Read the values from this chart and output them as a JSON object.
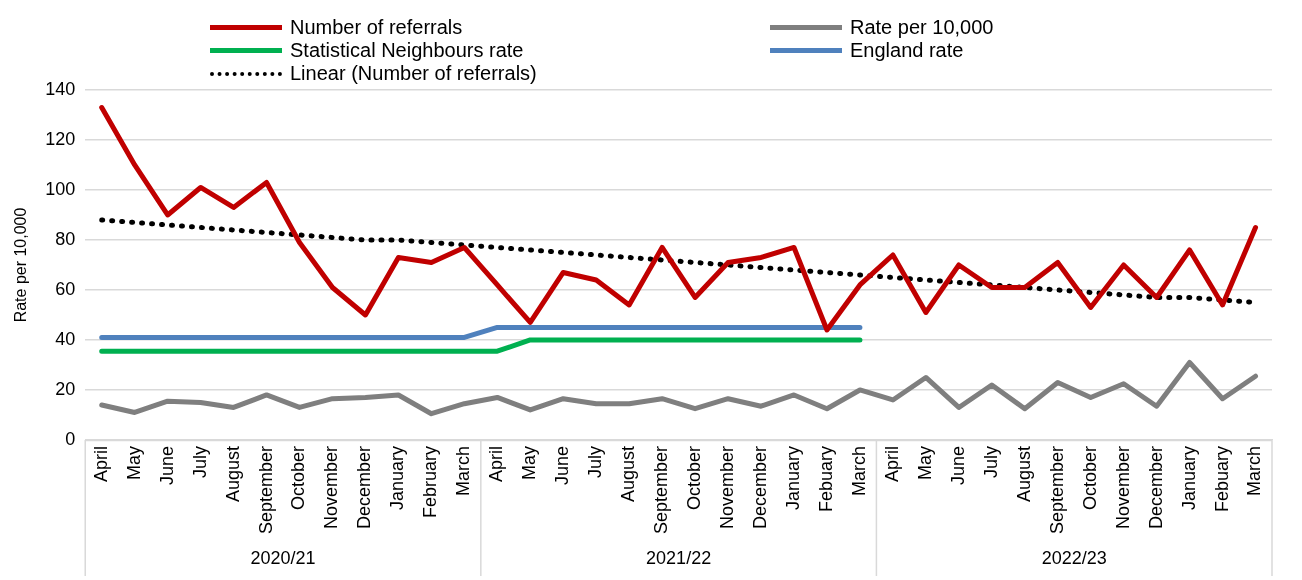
{
  "chart_data": {
    "type": "line",
    "ylabel": "Rate per 10,000",
    "categories": [
      "April",
      "May",
      "June",
      "July",
      "August",
      "September",
      "October",
      "November",
      "December",
      "January",
      "February",
      "March",
      "April",
      "May",
      "June",
      "July",
      "August",
      "September",
      "October",
      "November",
      "December",
      "January",
      "Febuary",
      "March",
      "April",
      "May",
      "June",
      "July",
      "August",
      "September",
      "October",
      "November",
      "December",
      "January",
      "Febuary",
      "March"
    ],
    "series": [
      {
        "name": "Number of referrals",
        "color": "#c00000",
        "values": [
          133,
          110,
          90,
          101,
          93,
          103,
          79,
          61,
          50,
          73,
          71,
          77,
          62,
          47,
          67,
          64,
          54,
          77,
          57,
          71,
          73,
          77,
          44,
          62,
          74,
          51,
          70,
          61,
          61,
          71,
          53,
          70,
          57,
          76,
          54,
          85
        ]
      },
      {
        "name": "Rate per 10,000",
        "color": "#7f7f7f",
        "values": [
          14,
          11,
          15.5,
          15,
          13,
          18,
          13,
          16.5,
          17,
          18,
          10.5,
          14.5,
          17,
          12,
          16.5,
          14.5,
          14.5,
          16.5,
          12.5,
          16.5,
          13.5,
          18,
          12.5,
          20,
          16,
          25,
          13,
          22,
          12.5,
          23,
          17,
          22.5,
          13.5,
          31,
          16.5,
          25.5
        ]
      },
      {
        "name": "Statistical Neighbours rate",
        "color": "#00b050",
        "values": [
          35.5,
          35.5,
          35.5,
          35.5,
          35.5,
          35.5,
          35.5,
          35.5,
          35.5,
          35.5,
          35.5,
          35.5,
          35.5,
          40,
          40,
          40,
          40,
          40,
          40,
          40,
          40,
          40,
          40,
          40,
          null,
          null,
          null,
          null,
          null,
          null,
          null,
          null,
          null,
          null,
          null,
          null
        ]
      },
      {
        "name": "England rate",
        "color": "#4f81bd",
        "values": [
          41,
          41,
          41,
          41,
          41,
          41,
          41,
          41,
          41,
          41,
          41,
          41,
          45,
          45,
          45,
          45,
          45,
          45,
          45,
          45,
          45,
          45,
          45,
          45,
          null,
          null,
          null,
          null,
          null,
          null,
          null,
          null,
          null,
          null,
          null,
          null
        ]
      },
      {
        "name": "Linear (Number of referrals)",
        "color": "#000000",
        "line_style": "dotted",
        "values": [
          88,
          87,
          86,
          85,
          84,
          83,
          82,
          81,
          80,
          80,
          79,
          78,
          77,
          76,
          75,
          74,
          73,
          72,
          71,
          70,
          69,
          68,
          67,
          66,
          65,
          64,
          63,
          62,
          61,
          60,
          59,
          58,
          57,
          57,
          56,
          55
        ]
      }
    ],
    "ylim": [
      0,
      140
    ],
    "yticks": [
      0,
      20,
      40,
      60,
      80,
      100,
      120,
      140
    ],
    "grid": "y",
    "legend": "top",
    "marker": "none",
    "annotations": [
      "2020/21",
      "2021/22",
      "2022/23"
    ]
  }
}
